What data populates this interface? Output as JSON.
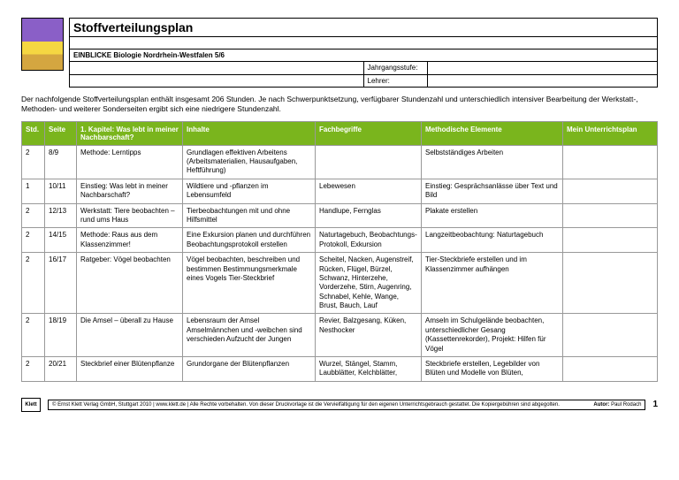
{
  "header": {
    "title": "Stoffverteilungsplan",
    "subtitle": "EINBLICKE Biologie Nordrhein-Westfalen 5/6",
    "grade_label": "Jahrgangsstufe:",
    "teacher_label": "Lehrer:"
  },
  "intro": "Der nachfolgende Stoffverteilungsplan enthält insgesamt 206 Stunden. Je nach Schwerpunktsetzung, verfügbarer Stundenzahl und unterschiedlich intensiver Bearbeitung der Werkstatt-, Methoden- und weiterer Sonderseiten ergibt sich eine niedrigere Stundenzahl.",
  "columns": [
    "Std.",
    "Seite",
    "1. Kapitel: Was lebt in meiner Nachbarschaft?",
    "Inhalte",
    "Fachbegriffe",
    "Methodische Elemente",
    "Mein Unterrichtsplan"
  ],
  "rows": [
    {
      "std": "2",
      "seite": "8/9",
      "kap": "Methode: Lerntipps",
      "inhalte": "Grundlagen effektiven Arbeitens (Arbeitsmaterialien, Hausaufgaben, Heftführung)",
      "fach": "",
      "meth": "Selbstständiges Arbeiten",
      "plan": ""
    },
    {
      "std": "1",
      "seite": "10/11",
      "kap": "Einstieg: Was lebt in meiner Nachbarschaft?",
      "inhalte": "Wildtiere und -pflanzen im Lebensumfeld",
      "fach": "Lebewesen",
      "meth": "Einstieg: Gesprächsanlässe über Text und Bild",
      "plan": ""
    },
    {
      "std": "2",
      "seite": "12/13",
      "kap": "Werkstatt: Tiere beobachten – rund ums Haus",
      "inhalte": "Tierbeobachtungen mit und ohne Hilfsmittel",
      "fach": "Handlupe, Fernglas",
      "meth": "Plakate erstellen",
      "plan": ""
    },
    {
      "std": "2",
      "seite": "14/15",
      "kap": "Methode: Raus aus dem Klassenzimmer!",
      "inhalte": "Eine Exkursion planen und durchführen Beobachtungsprotokoll erstellen",
      "fach": "Naturtagebuch, Beobachtungs-Protokoll, Exkursion",
      "meth": "Langzeitbeobachtung: Naturtagebuch",
      "plan": ""
    },
    {
      "std": "2",
      "seite": "16/17",
      "kap": "Ratgeber: Vögel beobachten",
      "inhalte": "Vögel beobachten, beschreiben und bestimmen Bestimmungsmerkmale eines Vogels Tier-Steckbrief",
      "fach": "Scheitel, Nacken, Augenstreif, Rücken, Flügel, Bürzel, Schwanz, Hinterzehe, Vorderzehe, Stirn, Augenring, Schnabel, Kehle, Wange, Brust, Bauch, Lauf",
      "meth": "Tier-Steckbriefe erstellen und im Klassenzimmer aufhängen",
      "plan": ""
    },
    {
      "std": "2",
      "seite": "18/19",
      "kap": "Die Amsel – überall zu Hause",
      "inhalte": "Lebensraum der Amsel Amselmännchen und -weibchen sind verschieden Aufzucht der Jungen",
      "fach": "Revier, Balzgesang, Küken, Nesthocker",
      "meth": "Amseln im Schulgelände beobachten, unterschiedlicher Gesang (Kassettenrekorder), Projekt: Hilfen für Vögel",
      "plan": ""
    },
    {
      "std": "2",
      "seite": "20/21",
      "kap": "Steckbrief einer Blütenpflanze",
      "inhalte": "Grundorgane der Blütenpflanzen",
      "fach": "Wurzel, Stängel, Stamm, Laubblätter, Kelchblätter,",
      "meth": "Steckbriefe erstellen, Legebilder von Blüten und Modelle von Blüten,",
      "plan": ""
    }
  ],
  "footer": {
    "logo": "Klett",
    "copyright": "© Ernst Klett Verlag GmbH, Stuttgart 2010 | www.klett.de | Alle Rechte vorbehalten. Von dieser Druckvorlage ist die Vervielfältigung für den eigenen Unterrichtsgebrauch gestattet. Die Kopiergebühren sind abgegolten.",
    "author_label": "Autor:",
    "author": "Paul Rodach",
    "page": "1"
  },
  "colors": {
    "header_bg": "#7ab51d",
    "header_text": "#ffffff",
    "border": "#999999"
  }
}
